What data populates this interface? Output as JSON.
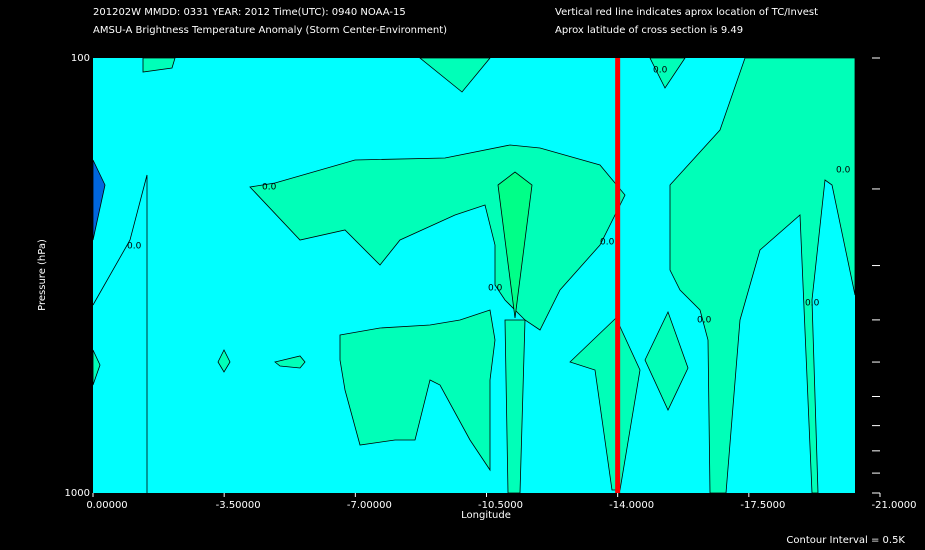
{
  "chart_data": {
    "type": "contour",
    "title_lines": [
      "201202W  MMDD: 0331 YEAR: 2012 Time(UTC): 0940 NOAA-15",
      "AMSU-A Brightness Temperature Anomaly (Storm Center-Environment)"
    ],
    "note_lines": [
      "Vertical red line indicates aprox location of TC/Invest",
      "Aprox latitude of cross section is 9.49"
    ],
    "xlabel": "Longitude",
    "ylabel": "Pressure (hPa)",
    "xlim": [
      0,
      -21
    ],
    "xticks": [
      {
        "value": 0,
        "label": "0.00000"
      },
      {
        "value": -3.5,
        "label": "-3.50000"
      },
      {
        "value": -7,
        "label": "-7.00000"
      },
      {
        "value": -10.5,
        "label": "-10.5000"
      },
      {
        "value": -14,
        "label": "-14.0000"
      },
      {
        "value": -17.5,
        "label": "-17.5000"
      },
      {
        "value": -21,
        "label": "-21.0000"
      }
    ],
    "ylim": [
      1000,
      100
    ],
    "log_scale": true,
    "yticks": [
      100,
      1000
    ],
    "minor_yticks": [
      200,
      300,
      400,
      500,
      600,
      700,
      800,
      900
    ],
    "tc_longitude": -14,
    "tc_line_color": "#ff0000",
    "contour_label": "0.0",
    "contour_interval": "Contour Interval = 0.5K"
  }
}
